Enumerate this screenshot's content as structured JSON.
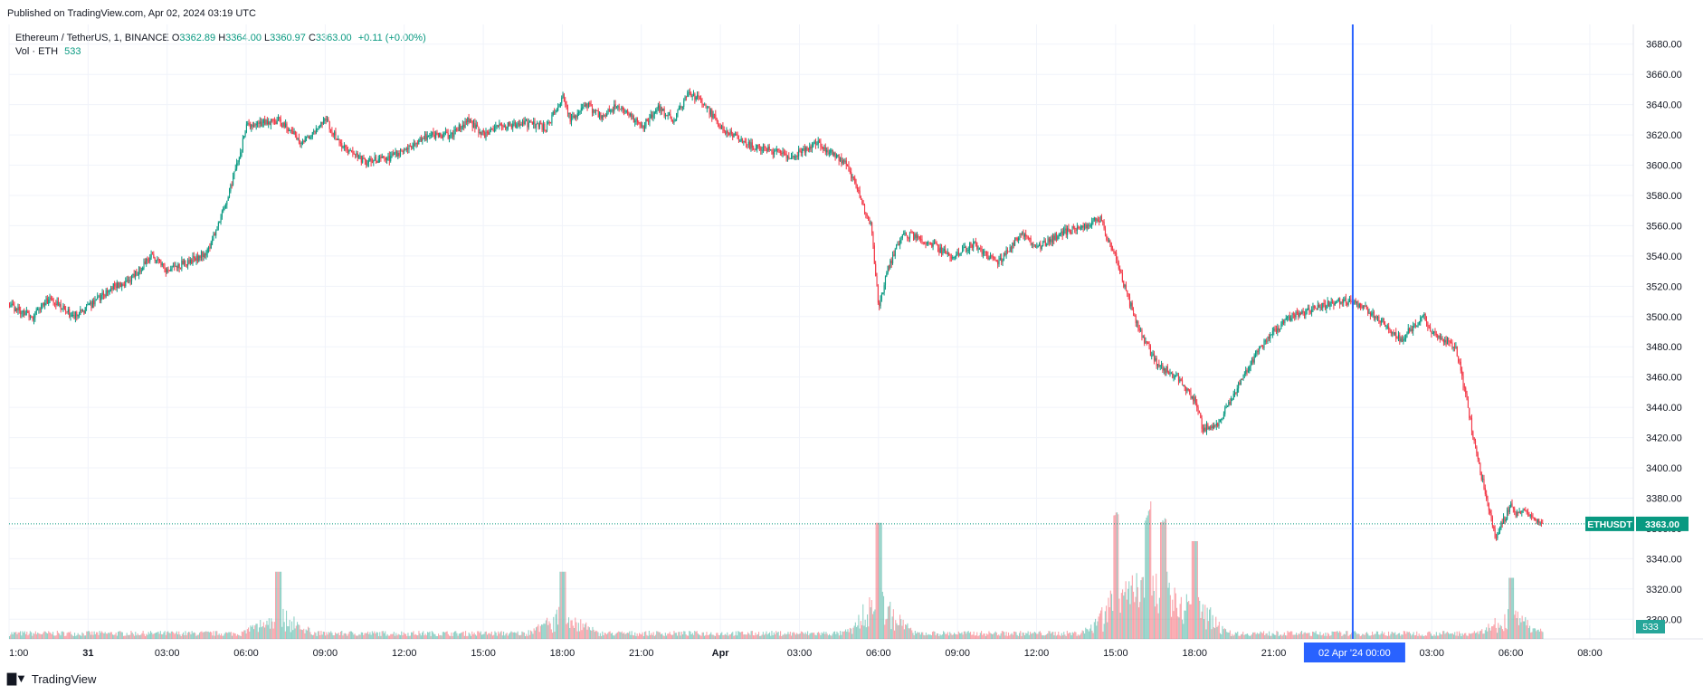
{
  "publish_note": "Published on TradingView.com, Apr 02, 2024 03:19 UTC",
  "legend": {
    "symbol": "Ethereum / TetherUS, 1, BINANCE",
    "open_label": "O",
    "open": "3362.89",
    "high_label": "H",
    "high": "3364.00",
    "low_label": "L",
    "low": "3360.97",
    "close_label": "C",
    "close": "3363.00",
    "change": "+0.11 (+0.00%)",
    "volume_label": "Vol · ETH",
    "volume_value": "533"
  },
  "price_tag": {
    "symbol": "ETHUSDT",
    "price": "3363.00"
  },
  "volume_tag": "533",
  "crosshair_label": "02 Apr '24   00:00",
  "brand": "TradingView",
  "colors": {
    "up": "#089981",
    "down": "#f23645",
    "crosshair": "#2962ff",
    "grid": "#f0f3fa"
  },
  "chart_data": {
    "type": "line",
    "title": "Ethereum / TetherUS, 1, BINANCE",
    "y_ticks": [
      "3300.00",
      "3320.00",
      "3340.00",
      "3360.00",
      "3380.00",
      "3400.00",
      "3420.00",
      "3440.00",
      "3460.00",
      "3480.00",
      "3500.00",
      "3520.00",
      "3540.00",
      "3560.00",
      "3580.00",
      "3600.00",
      "3620.00",
      "3640.00",
      "3660.00",
      "3680.00"
    ],
    "ylim": [
      3287,
      3693
    ],
    "x_ticks": [
      "1:00",
      "31",
      "03:00",
      "06:00",
      "09:00",
      "12:00",
      "15:00",
      "18:00",
      "21:00",
      "Apr",
      "03:00",
      "06:00",
      "09:00",
      "12:00",
      "15:00",
      "18:00",
      "21:00",
      "00:00",
      "03:00",
      "06:00",
      "08:00"
    ],
    "x_hours": [
      1,
      2,
      3,
      4,
      5,
      6,
      7,
      8,
      9,
      10,
      11,
      12,
      13,
      14,
      15,
      16,
      17,
      18,
      19,
      20,
      21
    ],
    "xlim": [
      1,
      21.55
    ],
    "series": [
      {
        "x": [
          1.0,
          1.3,
          1.5,
          1.8,
          2.0,
          2.3,
          2.5,
          2.8,
          3.0,
          3.2,
          3.5,
          3.8,
          4.0,
          4.4,
          4.7,
          5.0,
          5.2,
          5.5,
          5.8,
          6.0,
          6.3,
          6.6,
          6.8,
          7.0,
          7.2,
          7.5,
          7.8,
          8.0,
          8.1,
          8.3,
          8.5,
          8.7,
          9.0,
          9.2,
          9.4,
          9.6,
          9.8,
          10.0,
          10.3,
          10.6,
          10.9,
          11.2,
          11.4,
          11.6,
          11.9,
          12.0,
          12.1,
          12.3,
          12.6,
          12.9,
          13.2,
          13.5,
          13.8,
          14.0,
          14.3,
          14.6,
          14.8,
          14.9,
          15.0,
          15.1,
          15.3,
          15.5,
          15.8,
          16.0,
          16.1,
          16.3,
          16.6,
          16.9,
          17.2,
          17.5,
          17.8,
          18.0,
          18.3,
          18.6,
          18.9,
          19.0,
          19.3,
          19.6,
          19.8,
          20.0,
          20.05,
          20.15,
          20.3,
          20.4
        ],
        "values": [
          3507,
          3500,
          3512,
          3500,
          3506,
          3520,
          3522,
          3541,
          3530,
          3535,
          3542,
          3585,
          3625,
          3630,
          3615,
          3630,
          3612,
          3602,
          3605,
          3610,
          3620,
          3620,
          3630,
          3620,
          3625,
          3628,
          3625,
          3645,
          3630,
          3640,
          3632,
          3640,
          3625,
          3638,
          3630,
          3648,
          3640,
          3625,
          3614,
          3610,
          3605,
          3615,
          3608,
          3600,
          3560,
          3505,
          3530,
          3555,
          3550,
          3540,
          3548,
          3535,
          3555,
          3545,
          3555,
          3560,
          3565,
          3550,
          3540,
          3520,
          3490,
          3470,
          3458,
          3445,
          3425,
          3430,
          3460,
          3485,
          3500,
          3505,
          3510,
          3510,
          3500,
          3485,
          3500,
          3490,
          3480,
          3400,
          3355,
          3375,
          3368,
          3372,
          3365,
          3363
        ]
      }
    ],
    "volume_series": {
      "label": "Vol · ETH",
      "spikes": [
        {
          "x": 4.4,
          "v": 0.55
        },
        {
          "x": 8.0,
          "v": 0.55
        },
        {
          "x": 12.0,
          "v": 0.95
        },
        {
          "x": 15.0,
          "v": 1.0
        },
        {
          "x": 15.4,
          "v": 0.9
        },
        {
          "x": 15.6,
          "v": 0.95
        },
        {
          "x": 16.0,
          "v": 0.8
        },
        {
          "x": 20.0,
          "v": 0.5
        }
      ]
    },
    "last_price": 3363.0,
    "crosshair_x_hour": 18.0,
    "grid": true
  }
}
